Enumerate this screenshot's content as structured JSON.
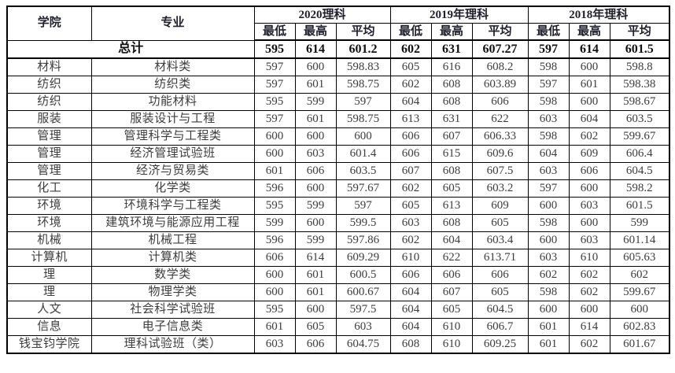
{
  "table": {
    "header": {
      "college_label": "学院",
      "major_label": "专业",
      "year_groups": [
        {
          "label": "2020理科",
          "sub_cols": [
            "最低",
            "最高",
            "平均"
          ]
        },
        {
          "label": "2019年理科",
          "sub_cols": [
            "最低",
            "最高",
            "平均"
          ]
        },
        {
          "label": "2018年理科",
          "sub_cols": [
            "最低",
            "最高",
            "平均"
          ]
        }
      ]
    },
    "total_row": {
      "label": "总计",
      "values": [
        "595",
        "614",
        "601.2",
        "602",
        "631",
        "607.27",
        "597",
        "614",
        "601.5"
      ]
    },
    "rows": [
      {
        "college": "材料",
        "major": "材料类",
        "values": [
          "597",
          "600",
          "598.83",
          "605",
          "616",
          "608.2",
          "598",
          "600",
          "598.8"
        ]
      },
      {
        "college": "纺织",
        "major": "纺织类",
        "values": [
          "597",
          "601",
          "598.75",
          "602",
          "608",
          "603.89",
          "597",
          "601",
          "598.38"
        ]
      },
      {
        "college": "纺织",
        "major": "功能材料",
        "values": [
          "595",
          "599",
          "597",
          "604",
          "608",
          "606",
          "598",
          "600",
          "598.67"
        ]
      },
      {
        "college": "服装",
        "major": "服装设计与工程",
        "values": [
          "597",
          "601",
          "598.75",
          "613",
          "631",
          "622",
          "603",
          "604",
          "603.5"
        ]
      },
      {
        "college": "管理",
        "major": "管理科学与工程类",
        "values": [
          "600",
          "600",
          "600",
          "606",
          "607",
          "606.33",
          "598",
          "602",
          "599.67"
        ]
      },
      {
        "college": "管理",
        "major": "经济管理试验班",
        "values": [
          "600",
          "603",
          "601.4",
          "606",
          "615",
          "609.6",
          "604",
          "609",
          "606.4"
        ]
      },
      {
        "college": "管理",
        "major": "经济与贸易类",
        "values": [
          "601",
          "606",
          "603.5",
          "607",
          "608",
          "607.5",
          "603",
          "606",
          "604.5"
        ]
      },
      {
        "college": "化工",
        "major": "化学类",
        "values": [
          "596",
          "600",
          "597.67",
          "602",
          "605",
          "603.2",
          "597",
          "600",
          "598.2"
        ]
      },
      {
        "college": "环境",
        "major": "环境科学与工程类",
        "values": [
          "595",
          "599",
          "597",
          "605",
          "613",
          "609",
          "600",
          "603",
          "601.5"
        ]
      },
      {
        "college": "环境",
        "major": "建筑环境与能源应用工程",
        "values": [
          "599",
          "600",
          "599.5",
          "603",
          "608",
          "605",
          "598",
          "600",
          "599"
        ]
      },
      {
        "college": "机械",
        "major": "机械工程",
        "values": [
          "596",
          "599",
          "597.86",
          "602",
          "604",
          "603.4",
          "600",
          "603",
          "601.14"
        ]
      },
      {
        "college": "计算机",
        "major": "计算机类",
        "values": [
          "606",
          "614",
          "609.29",
          "610",
          "622",
          "613.71",
          "603",
          "610",
          "605.63"
        ]
      },
      {
        "college": "理",
        "major": "数学类",
        "values": [
          "600",
          "601",
          "600.5",
          "606",
          "606",
          "606",
          "602",
          "602",
          "602"
        ]
      },
      {
        "college": "理",
        "major": "物理学类",
        "values": [
          "600",
          "601",
          "600.67",
          "604",
          "607",
          "605",
          "598",
          "602",
          "599.67"
        ]
      },
      {
        "college": "人文",
        "major": "社会科学试验班",
        "values": [
          "595",
          "600",
          "597.5",
          "604",
          "605",
          "604.5",
          "600",
          "600",
          "600"
        ]
      },
      {
        "college": "信息",
        "major": "电子信息类",
        "values": [
          "601",
          "605",
          "603",
          "604",
          "610",
          "606.7",
          "601",
          "614",
          "602.83"
        ]
      },
      {
        "college": "钱宝钧学院",
        "major": "理科试验班（类）",
        "values": [
          "603",
          "606",
          "604.75",
          "608",
          "610",
          "609.25",
          "601",
          "602",
          "601.67"
        ]
      }
    ],
    "colors": {
      "border": "#000000",
      "header_text": "#21212e",
      "body_text": "#3d3d3d",
      "background": "#ffffff"
    }
  }
}
